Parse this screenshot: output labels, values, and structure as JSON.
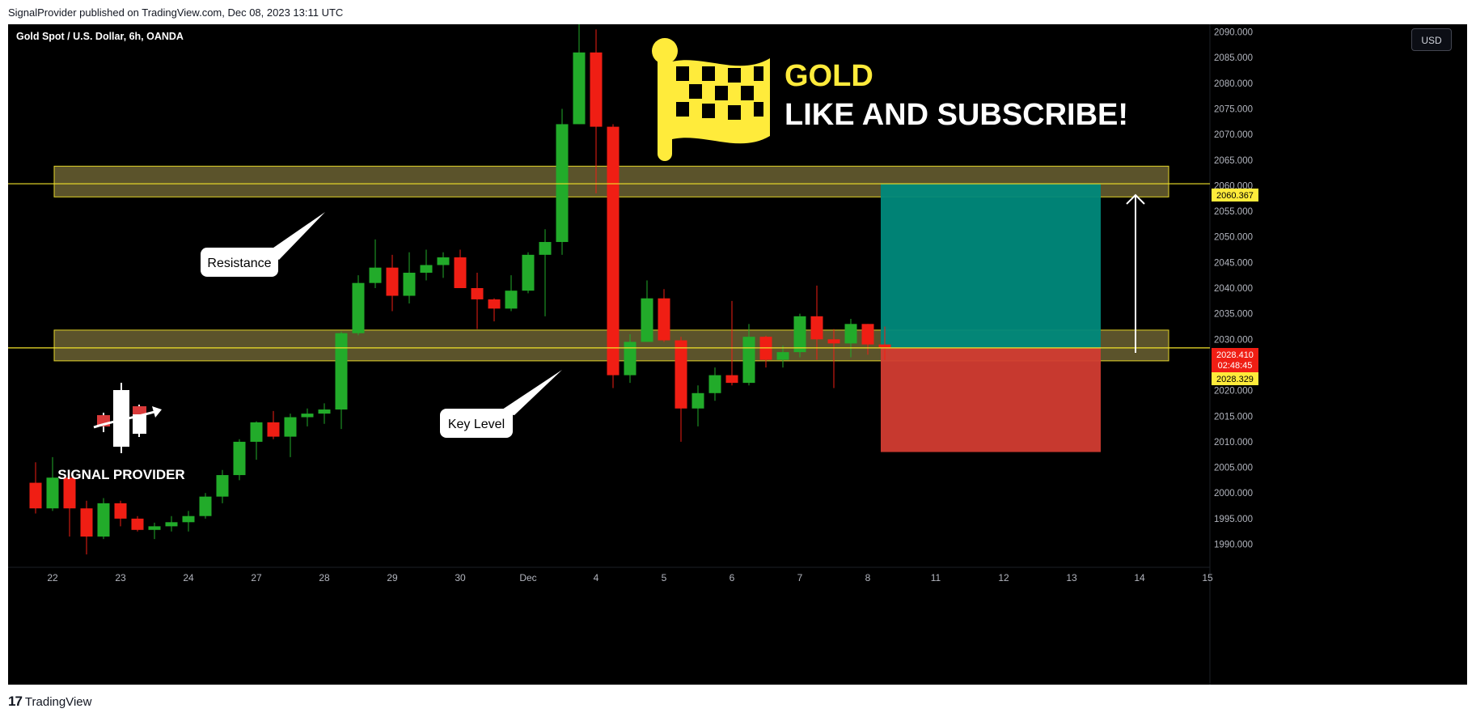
{
  "header": {
    "published_line": "SignalProvider published on TradingView.com, Dec 08, 2023 13:11 UTC"
  },
  "chart": {
    "symbol_title": "Gold Spot / U.S. Dollar, 6h, OANDA",
    "currency_button": "USD",
    "overlay": {
      "headline": "GOLD",
      "subline": "LIKE AND SUBSCRIBE!",
      "brand_name": "SIGNAL PROVIDER",
      "callout_resistance": "Resistance",
      "callout_key_level": "Key Level"
    },
    "price_labels": {
      "target": "2060.367",
      "last": "2028.410",
      "countdown": "02:48:45",
      "entry": "2028.329"
    },
    "colors": {
      "up": "#22ab2a",
      "down": "#f01e14",
      "zone_fill": "#6b6132",
      "zone_border": "#e3d42a",
      "level_line": "#f2e32a",
      "take_profit": "#00897b",
      "stop_loss": "#d23c32",
      "accent_yellow": "#ffeb3b"
    }
  },
  "chart_data": {
    "type": "candlestick",
    "ylim": [
      1985.5,
      2091.5
    ],
    "y_ticks": [
      1990,
      1995,
      2000,
      2005,
      2010,
      2015,
      2020,
      2025,
      2030,
      2035,
      2040,
      2045,
      2050,
      2055,
      2060,
      2065,
      2070,
      2075,
      2080,
      2085,
      2090
    ],
    "y_tick_labels": [
      "1990.000",
      "1995.000",
      "2000.000",
      "2005.000",
      "2010.000",
      "2015.000",
      "2020.000",
      "2025.000",
      "2030.000",
      "2035.000",
      "2040.000",
      "2045.000",
      "2050.000",
      "2055.000",
      "2060.000",
      "2065.000",
      "2070.000",
      "2075.000",
      "2080.000",
      "2085.000",
      "2090.000"
    ],
    "x_tick_labels": [
      "22",
      "23",
      "24",
      "27",
      "28",
      "29",
      "30",
      "Dec",
      "4",
      "5",
      "6",
      "7",
      "8",
      "11",
      "12",
      "13",
      "14",
      "15"
    ],
    "x_tick_slots": [
      1,
      5,
      9,
      13,
      17,
      21,
      25,
      29,
      33,
      37,
      41,
      45,
      49,
      53,
      57,
      61,
      65,
      69
    ],
    "candles": [
      [
        2002.0,
        2006.0,
        1996.0,
        1997.0
      ],
      [
        1997.0,
        2007.0,
        1996.5,
        2003.0
      ],
      [
        2003.0,
        2004.0,
        1991.5,
        1997.0
      ],
      [
        1997.0,
        1998.5,
        1988.0,
        1991.5
      ],
      [
        1991.5,
        1999.0,
        1991.0,
        1998.0
      ],
      [
        1998.0,
        1998.5,
        1993.5,
        1995.0
      ],
      [
        1995.0,
        1995.5,
        1992.5,
        1992.8
      ],
      [
        1992.8,
        1994.2,
        1991.0,
        1993.5
      ],
      [
        1993.5,
        1995.5,
        1992.5,
        1994.3
      ],
      [
        1994.3,
        1996.5,
        1992.5,
        1995.5
      ],
      [
        1995.5,
        2000.0,
        1995.0,
        1999.3
      ],
      [
        1999.3,
        2004.5,
        1998.0,
        2003.5
      ],
      [
        2003.5,
        2010.5,
        2002.5,
        2010.0
      ],
      [
        2010.0,
        2014.0,
        2006.5,
        2013.8
      ],
      [
        2013.8,
        2016.0,
        2010.5,
        2011.0
      ],
      [
        2011.0,
        2015.5,
        2007.0,
        2014.8
      ],
      [
        2014.8,
        2016.5,
        2013.0,
        2015.5
      ],
      [
        2015.5,
        2017.5,
        2013.5,
        2016.3
      ],
      [
        2016.3,
        2031.5,
        2012.5,
        2031.2
      ],
      [
        2031.2,
        2042.5,
        2030.8,
        2041.0
      ],
      [
        2041.0,
        2049.5,
        2040.0,
        2044.0
      ],
      [
        2044.0,
        2046.5,
        2035.5,
        2038.5
      ],
      [
        2038.5,
        2047.0,
        2037.0,
        2043.0
      ],
      [
        2043.0,
        2047.5,
        2041.5,
        2044.5
      ],
      [
        2044.5,
        2047.0,
        2042.0,
        2046.0
      ],
      [
        2046.0,
        2047.5,
        2040.0,
        2040.0
      ],
      [
        2040.0,
        2043.0,
        2032.0,
        2037.8
      ],
      [
        2037.8,
        2038.0,
        2033.5,
        2036.0
      ],
      [
        2036.0,
        2042.5,
        2035.5,
        2039.5
      ],
      [
        2039.5,
        2047.0,
        2039.0,
        2046.5
      ],
      [
        2046.5,
        2051.5,
        2034.5,
        2049.0
      ],
      [
        2049.0,
        2075.0,
        2046.5,
        2072.0
      ],
      [
        2072.0,
        2093.0,
        2072.0,
        2086.0
      ],
      [
        2086.0,
        2090.5,
        2058.5,
        2071.5
      ],
      [
        2071.5,
        2072.0,
        2020.5,
        2023.0
      ],
      [
        2023.0,
        2031.0,
        2021.5,
        2029.5
      ],
      [
        2029.5,
        2041.5,
        2029.5,
        2038.0
      ],
      [
        2038.0,
        2039.8,
        2029.5,
        2029.8
      ],
      [
        2029.8,
        2030.5,
        2010.0,
        2016.5
      ],
      [
        2016.5,
        2021.0,
        2013.0,
        2019.5
      ],
      [
        2019.5,
        2024.5,
        2018.0,
        2023.0
      ],
      [
        2023.0,
        2037.5,
        2021.0,
        2021.5
      ],
      [
        2021.5,
        2033.0,
        2021.0,
        2030.5
      ],
      [
        2030.5,
        2030.7,
        2024.5,
        2026.0
      ],
      [
        2026.0,
        2028.8,
        2024.5,
        2027.5
      ],
      [
        2027.5,
        2035.0,
        2026.5,
        2034.5
      ],
      [
        2034.5,
        2040.5,
        2026.0,
        2030.0
      ],
      [
        2030.0,
        2032.0,
        2020.5,
        2029.2
      ],
      [
        2029.2,
        2034.0,
        2026.5,
        2033.0
      ],
      [
        2033.0,
        2033.0,
        2027.0,
        2029.0
      ],
      [
        2029.0,
        2032.5,
        2026.0,
        2028.4
      ]
    ],
    "resistance_zone": [
      2057.8,
      2063.8
    ],
    "key_level_zone": [
      2025.8,
      2031.8
    ],
    "resistance_line": 2060.367,
    "key_level_line": 2028.329,
    "position": {
      "entry": 2028.329,
      "target": 2060.367,
      "stop": 2008.0
    }
  }
}
